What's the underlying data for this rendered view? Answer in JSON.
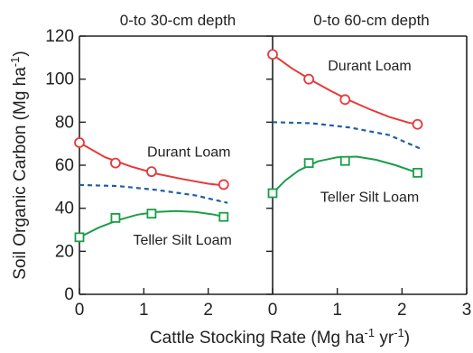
{
  "chart_data": {
    "type": "scatter",
    "xlabel_main": "Cattle Stocking Rate (Mg ha",
    "xlabel_sup1": "-1",
    "xlabel_mid": " yr",
    "xlabel_sup2": "-1",
    "xlabel_end": ")",
    "ylabel_main": "Soil Organic Carbon (Mg ha",
    "ylabel_sup": "-1",
    "ylabel_end": ")",
    "ylim": [
      0,
      120
    ],
    "yticks": [
      0,
      20,
      40,
      60,
      80,
      100,
      120
    ],
    "xlim": [
      0,
      3
    ],
    "colors": {
      "durant": "#e53a3a",
      "teller": "#1a9e4a",
      "average": "#1f5fa8",
      "axis": "#222222"
    },
    "panels": [
      {
        "title": "0-to 30-cm depth",
        "xticks": [
          0,
          1,
          2
        ],
        "series": [
          {
            "name": "Durant Loam",
            "marker": "circle",
            "x": [
              0,
              0.56,
              1.12,
              2.24
            ],
            "y": [
              70.5,
              61,
              57,
              51
            ]
          },
          {
            "name": "Teller Silt Loam",
            "marker": "square",
            "x": [
              0,
              0.56,
              1.12,
              2.24
            ],
            "y": [
              26.5,
              35.5,
              37.5,
              36
            ]
          }
        ],
        "fits": [
          {
            "series": "Durant Loam",
            "x": [
              0,
              0.4,
              0.8,
              1.2,
              1.6,
              2.0,
              2.24
            ],
            "y": [
              70.5,
              63.7,
              59.4,
              56,
              53.6,
              51.4,
              50.6
            ]
          },
          {
            "series": "Teller Silt Loam",
            "x": [
              0,
              0.3,
              0.6,
              0.9,
              1.2,
              1.5,
              1.8,
              2.1,
              2.24
            ],
            "y": [
              26.5,
              31,
              34.5,
              37,
              38.3,
              38.7,
              38.3,
              37,
              36
            ]
          },
          {
            "series": "average",
            "x": [
              0,
              0.6,
              1.2,
              1.8,
              2.3
            ],
            "y": [
              50.8,
              50.3,
              48.5,
              46,
              42.5
            ]
          }
        ],
        "labels": [
          {
            "series": "Durant Loam",
            "text": "Durant Loam",
            "x": 1.7,
            "y": 64
          },
          {
            "series": "Teller Silt Loam",
            "text": "Teller Silt Loam",
            "x": 1.6,
            "y": 23
          }
        ]
      },
      {
        "title": "0-to 60-cm depth",
        "xticks": [
          0,
          1,
          2,
          3
        ],
        "series": [
          {
            "name": "Durant Loam",
            "marker": "circle",
            "x": [
              0,
              0.56,
              1.12,
              2.24
            ],
            "y": [
              111.5,
              100,
              90.5,
              79
            ]
          },
          {
            "name": "Teller Silt Loam",
            "marker": "square",
            "x": [
              0,
              0.56,
              1.12,
              2.24
            ],
            "y": [
              47,
              61,
              62,
              56.5
            ]
          }
        ],
        "fits": [
          {
            "series": "Durant Loam",
            "x": [
              0,
              0.3,
              0.6,
              0.9,
              1.2,
              1.5,
              1.8,
              2.1,
              2.24
            ],
            "y": [
              111.5,
              105,
              99.5,
              94.5,
              90,
              86,
              82.5,
              79.8,
              79
            ]
          },
          {
            "series": "Teller Silt Loam",
            "x": [
              0,
              0.2,
              0.4,
              0.7,
              1.0,
              1.3,
              1.6,
              1.9,
              2.24
            ],
            "y": [
              47,
              53,
              57.5,
              61.8,
              63.7,
              64,
              62.5,
              60,
              56.5
            ]
          },
          {
            "series": "average",
            "x": [
              0,
              0.6,
              1.2,
              1.8,
              2.3
            ],
            "y": [
              80,
              79.5,
              77.5,
              74,
              67.5
            ]
          }
        ],
        "labels": [
          {
            "series": "Durant Loam",
            "text": "Durant Loam",
            "x": 1.5,
            "y": 104
          },
          {
            "series": "Teller Silt Loam",
            "text": "Teller Silt Loam",
            "x": 1.5,
            "y": 43
          }
        ]
      }
    ]
  }
}
